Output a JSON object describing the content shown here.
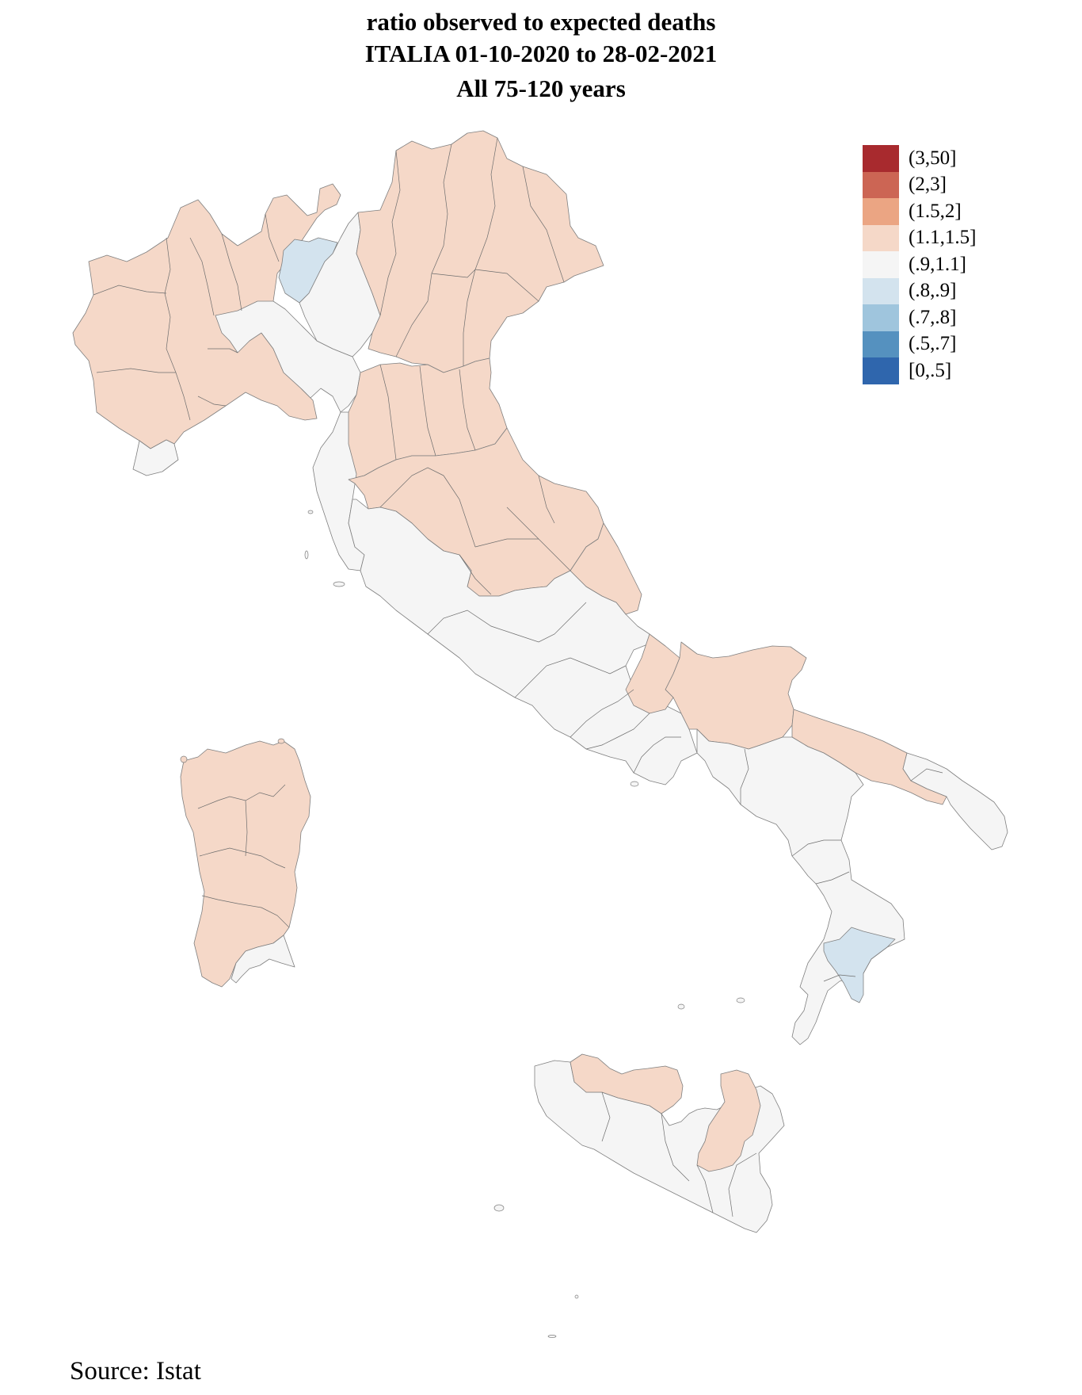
{
  "title": {
    "line1": "ratio observed to expected deaths",
    "line2": "ITALIA 01-10-2020 to 28-02-2021",
    "subtitle": "All 75-120 years"
  },
  "legend": {
    "placement": "top-right",
    "items": [
      {
        "label": "(3,50]",
        "color": "#a82a2e"
      },
      {
        "label": "(2,3]",
        "color": "#cc6554"
      },
      {
        "label": "(1.5,2]",
        "color": "#eba583"
      },
      {
        "label": "(1.1,1.5]",
        "color": "#f5d8c8"
      },
      {
        "label": "(.9,1.1]",
        "color": "#f5f5f5"
      },
      {
        "label": "(.8,.9]",
        "color": "#d3e3ee"
      },
      {
        "label": "(.7,.8]",
        "color": "#9fc5dd"
      },
      {
        "label": "(.5,.7]",
        "color": "#5591bf"
      },
      {
        "label": "[0,.5]",
        "color": "#2f66ad"
      }
    ]
  },
  "map": {
    "type": "choropleth",
    "country": "Italy",
    "area_units": "provinces",
    "regions": [
      {
        "id": "northwest",
        "category": "(1.1,1.5]"
      },
      {
        "id": "liguria-west",
        "category": "(.9,1.1]"
      },
      {
        "id": "lombardia-south",
        "category": "(.9,1.1]"
      },
      {
        "id": "sondrio",
        "category": "(.8,.9]"
      },
      {
        "id": "brescia",
        "category": "(.9,1.1]"
      },
      {
        "id": "northeast",
        "category": "(1.1,1.5]"
      },
      {
        "id": "emilia-romagna",
        "category": "(1.1,1.5]"
      },
      {
        "id": "toscana-coast",
        "category": "(.9,1.1]"
      },
      {
        "id": "toscana-umbria-marche",
        "category": "(1.1,1.5]"
      },
      {
        "id": "lazio-campania-molise",
        "category": "(.9,1.1]"
      },
      {
        "id": "abruzzo",
        "category": "(1.1,1.5]"
      },
      {
        "id": "foggia",
        "category": "(1.1,1.5]"
      },
      {
        "id": "puglia-central",
        "category": "(1.1,1.5]"
      },
      {
        "id": "salento",
        "category": "(.9,1.1]"
      },
      {
        "id": "basilicata-calabria",
        "category": "(.9,1.1]"
      },
      {
        "id": "crotone",
        "category": "(.8,.9]"
      },
      {
        "id": "sardegna",
        "category": "(1.1,1.5]"
      },
      {
        "id": "cagliari",
        "category": "(.9,1.1]"
      },
      {
        "id": "sicilia-west-south",
        "category": "(.9,1.1]"
      },
      {
        "id": "palermo",
        "category": "(1.1,1.5]"
      },
      {
        "id": "catania-enna",
        "category": "(1.1,1.5]"
      }
    ]
  },
  "source": "Source: Istat"
}
